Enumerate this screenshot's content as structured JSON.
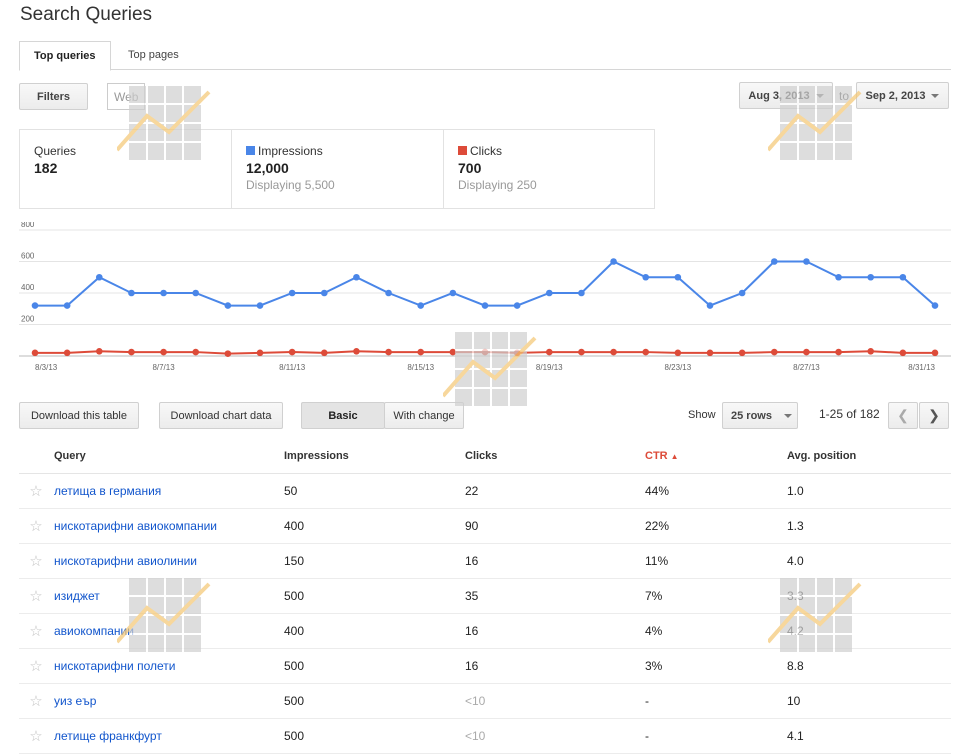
{
  "page_title": "Search Queries",
  "tabs": [
    "Top queries",
    "Top pages"
  ],
  "toolbar": {
    "filters_label": "Filters",
    "web_chip": "Web",
    "date_from": "Aug 3, 2013",
    "to_label": "to",
    "date_to": "Sep 2, 2013"
  },
  "summary": {
    "queries": {
      "label": "Queries",
      "value": "182"
    },
    "impressions": {
      "label": "Impressions",
      "value": "12,000",
      "sub": "Displaying 5,500",
      "color": "#4a86e8"
    },
    "clicks": {
      "label": "Clicks",
      "value": "700",
      "sub": "Displaying 250",
      "color": "#dd4b39"
    }
  },
  "chart_data": {
    "type": "line",
    "x": [
      "8/3/13",
      "8/4/13",
      "8/5/13",
      "8/6/13",
      "8/7/13",
      "8/8/13",
      "8/9/13",
      "8/10/13",
      "8/11/13",
      "8/12/13",
      "8/13/13",
      "8/14/13",
      "8/15/13",
      "8/16/13",
      "8/17/13",
      "8/18/13",
      "8/19/13",
      "8/20/13",
      "8/21/13",
      "8/22/13",
      "8/23/13",
      "8/24/13",
      "8/25/13",
      "8/26/13",
      "8/27/13",
      "8/28/13",
      "8/29/13",
      "8/30/13",
      "8/31/13"
    ],
    "x_tick_labels": [
      "8/3/13",
      "8/7/13",
      "8/11/13",
      "8/15/13",
      "8/19/13",
      "8/23/13",
      "8/27/13",
      "8/31/13"
    ],
    "y_tick_labels": [
      "800",
      "600",
      "400",
      "200"
    ],
    "ylim": [
      0,
      800
    ],
    "series": [
      {
        "name": "Impressions",
        "color": "#4a86e8",
        "values": [
          320,
          320,
          500,
          400,
          400,
          400,
          320,
          320,
          400,
          400,
          500,
          400,
          320,
          400,
          320,
          320,
          400,
          400,
          600,
          500,
          500,
          320,
          400,
          600,
          600,
          500,
          500,
          500,
          320
        ]
      },
      {
        "name": "Clicks",
        "color": "#dd4b39",
        "values": [
          20,
          20,
          30,
          25,
          25,
          25,
          15,
          20,
          25,
          20,
          30,
          25,
          25,
          25,
          25,
          20,
          25,
          25,
          25,
          25,
          20,
          20,
          20,
          25,
          25,
          25,
          30,
          20,
          20
        ]
      }
    ],
    "grid": true
  },
  "table_controls": {
    "download_table": "Download this table",
    "download_chart": "Download chart data",
    "basic": "Basic",
    "with_change": "With change",
    "show_label": "Show",
    "rows_select": "25 rows",
    "range": "1-25 of 182",
    "prev_icon": "chevron-left-icon",
    "next_icon": "chevron-right-icon"
  },
  "table": {
    "headers": [
      "Query",
      "Impressions",
      "Clicks",
      "CTR",
      "Avg. position"
    ],
    "rows": [
      [
        "летища в германия",
        "50",
        "22",
        "44%",
        "1.0"
      ],
      [
        "нискотарифни авиокомпании",
        "400",
        "90",
        "22%",
        "1.3"
      ],
      [
        "нискотарифни авиолинии",
        "150",
        "16",
        "11%",
        "4.0"
      ],
      [
        "изиджет",
        "500",
        "35",
        "7%",
        "3.3"
      ],
      [
        "авиокомпании",
        "400",
        "16",
        "4%",
        "4.2"
      ],
      [
        "нискотарифни полети",
        "500",
        "16",
        "3%",
        "8.8"
      ],
      [
        "уиз еър",
        "500",
        "<10",
        "-",
        "10"
      ],
      [
        "летище франкфурт",
        "500",
        "<10",
        "-",
        "4.1"
      ]
    ]
  }
}
